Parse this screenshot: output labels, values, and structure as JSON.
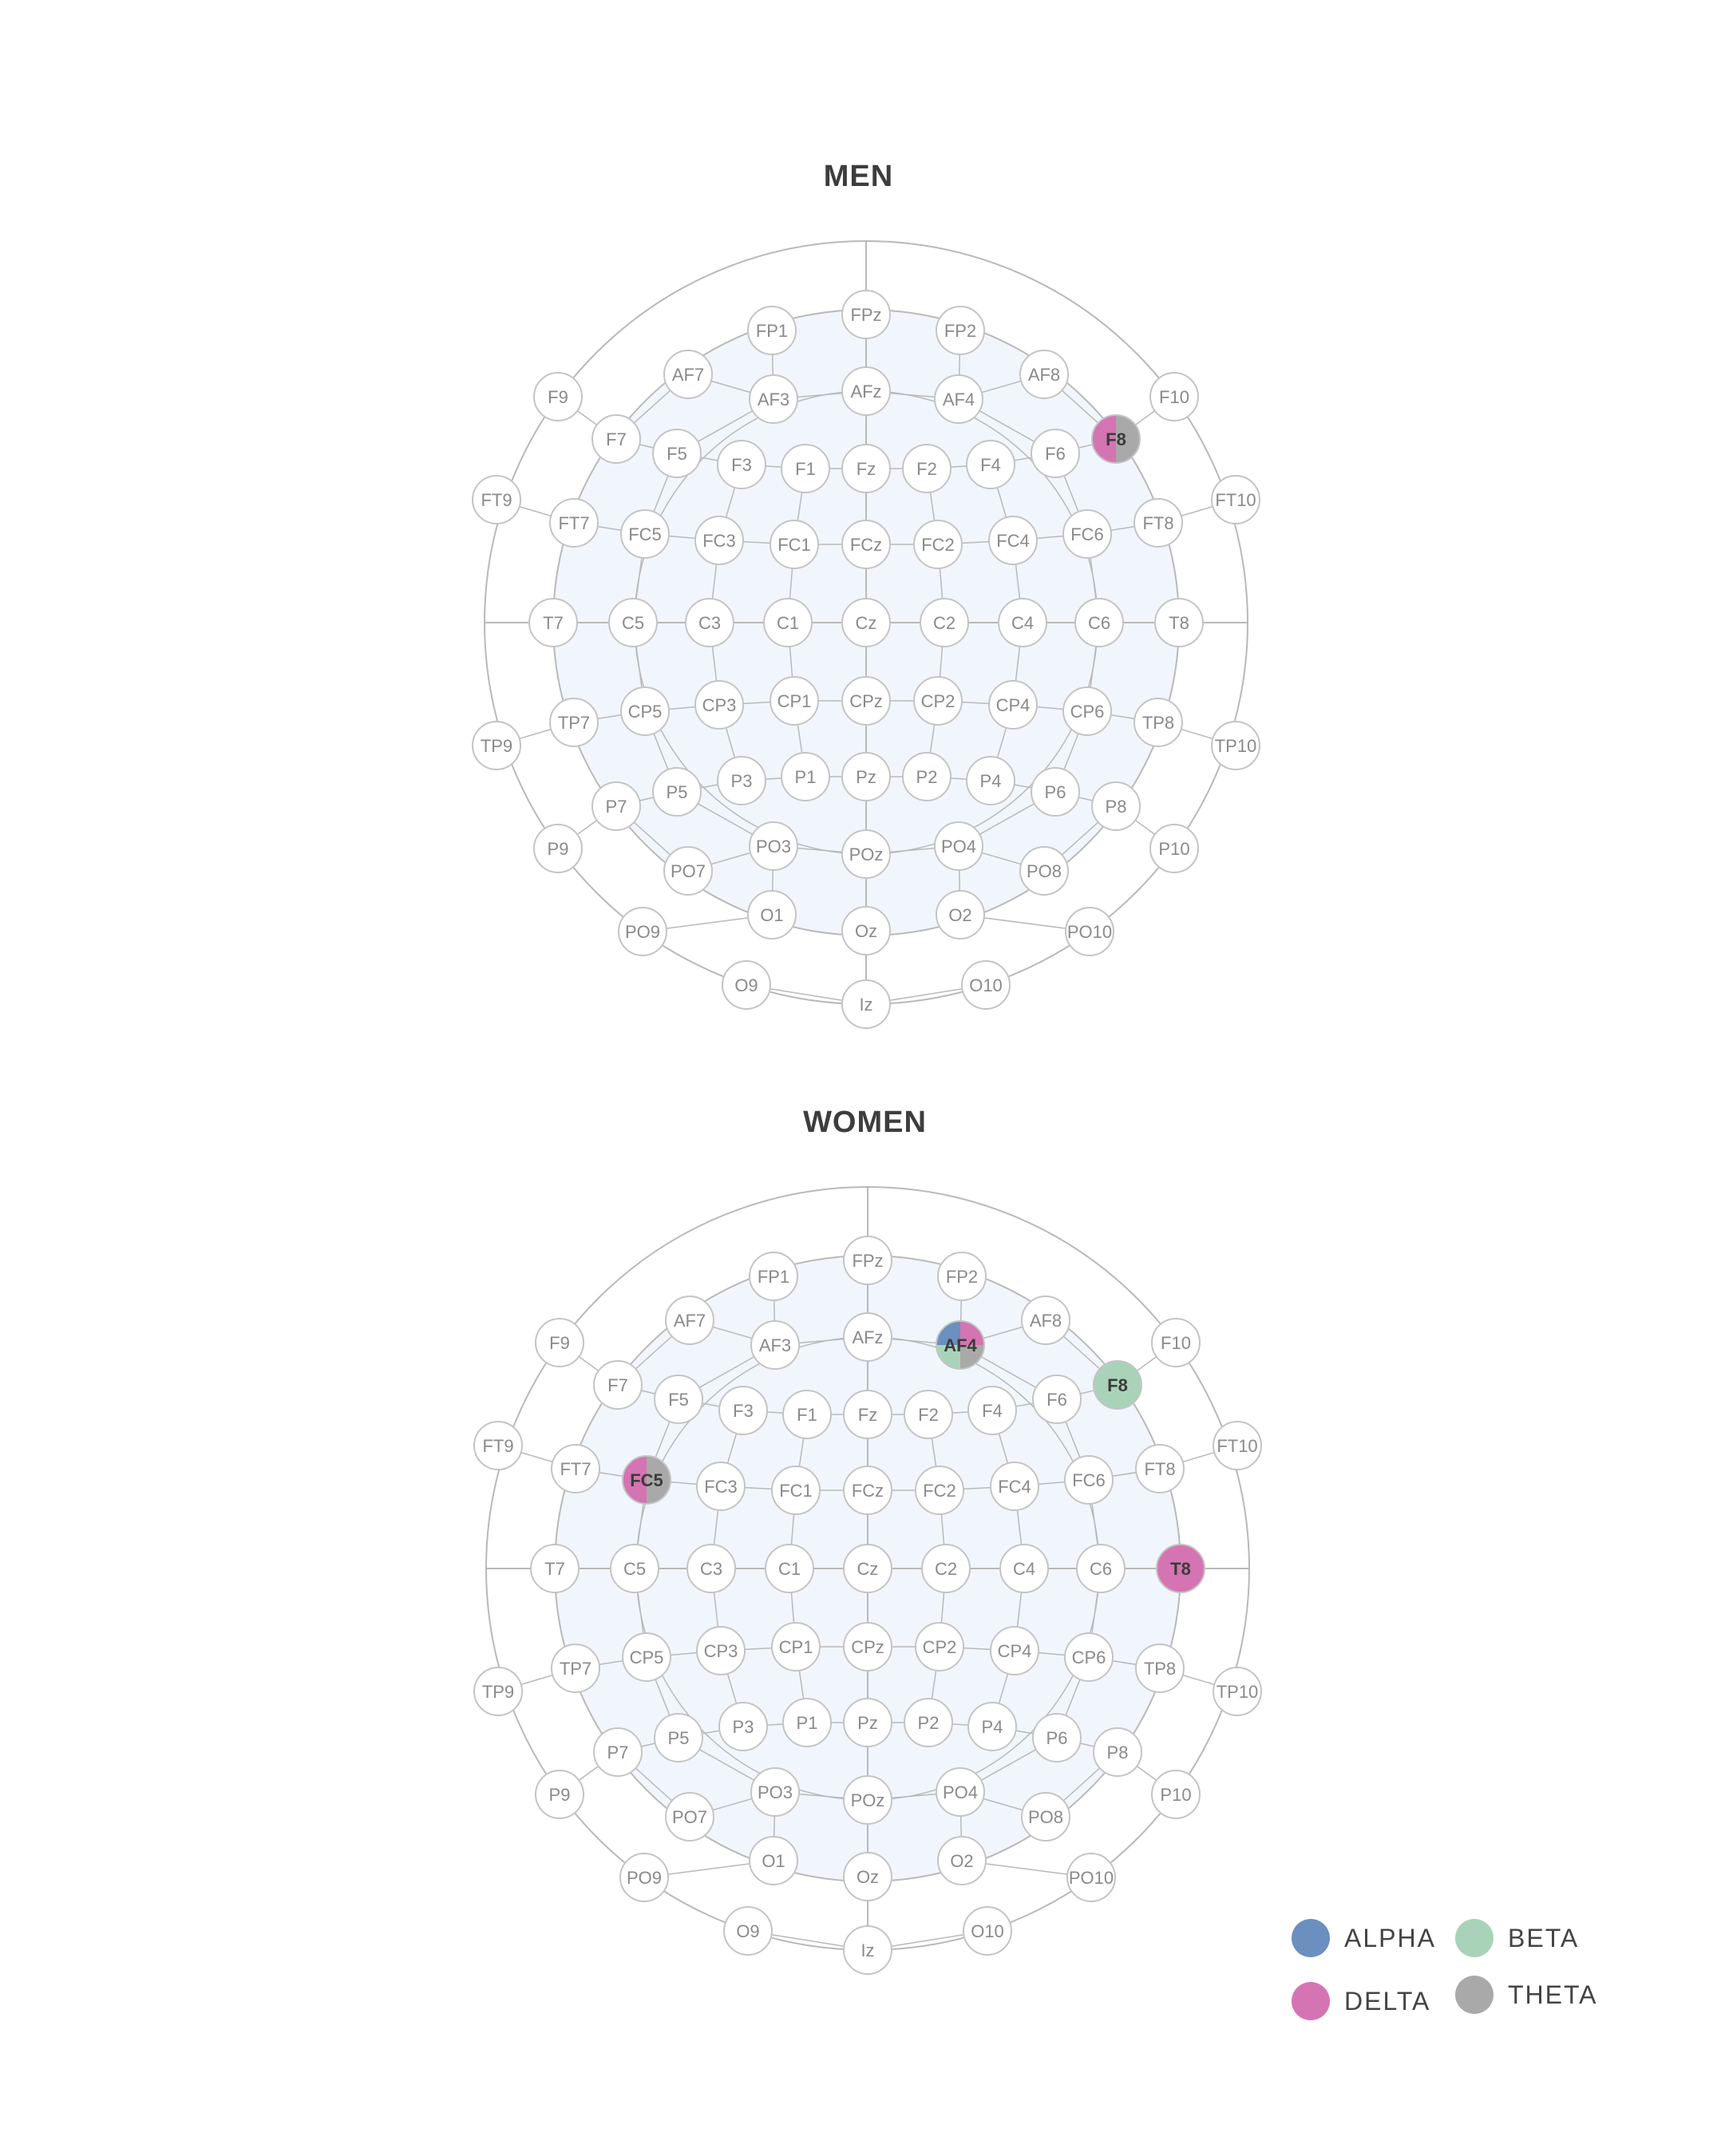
{
  "panels": [
    {
      "title": "MEN",
      "highlights": {
        "F8": [
          "delta",
          "theta"
        ]
      }
    },
    {
      "title": "WOMEN",
      "highlights": {
        "AF4": [
          "delta",
          "theta",
          "beta",
          "alpha"
        ],
        "F8": [
          "beta"
        ],
        "FC5": [
          "delta",
          "theta"
        ],
        "T8": [
          "delta"
        ]
      }
    }
  ],
  "electrodes": [
    "FPz",
    "FP1",
    "FP2",
    "AF7",
    "AF8",
    "AF3",
    "AFz",
    "AF4",
    "F9",
    "F10",
    "F7",
    "F8",
    "F5",
    "F3",
    "F1",
    "Fz",
    "F2",
    "F4",
    "F6",
    "FT9",
    "FT10",
    "FT7",
    "FT8",
    "FC5",
    "FC3",
    "FC1",
    "FCz",
    "FC2",
    "FC4",
    "FC6",
    "T7",
    "T8",
    "C5",
    "C3",
    "C1",
    "Cz",
    "C2",
    "C4",
    "C6",
    "TP9",
    "TP10",
    "TP7",
    "TP8",
    "CP5",
    "CP3",
    "CP1",
    "CPz",
    "CP2",
    "CP4",
    "CP6",
    "P9",
    "P10",
    "P7",
    "P8",
    "P5",
    "P3",
    "P1",
    "Pz",
    "P2",
    "P4",
    "P6",
    "PO7",
    "PO8",
    "PO3",
    "POz",
    "PO4",
    "PO9",
    "PO10",
    "O1",
    "O2",
    "Oz",
    "O9",
    "O10",
    "Iz"
  ],
  "legend": [
    {
      "key": "alpha",
      "label": "ALPHA",
      "color": "#6b8fbf"
    },
    {
      "key": "beta",
      "label": "BETA",
      "color": "#a9d3b9"
    },
    {
      "key": "delta",
      "label": "DELTA",
      "color": "#d574b2"
    },
    {
      "key": "theta",
      "label": "THETA",
      "color": "#a9a9a9"
    }
  ],
  "colors": {
    "ring": "#b9b9b9",
    "inner_fill": "#f1f6fc",
    "node_stroke": "#c4c4c4",
    "node_text": "#8a8a8a",
    "highlight_text": "#3b3b3b"
  }
}
